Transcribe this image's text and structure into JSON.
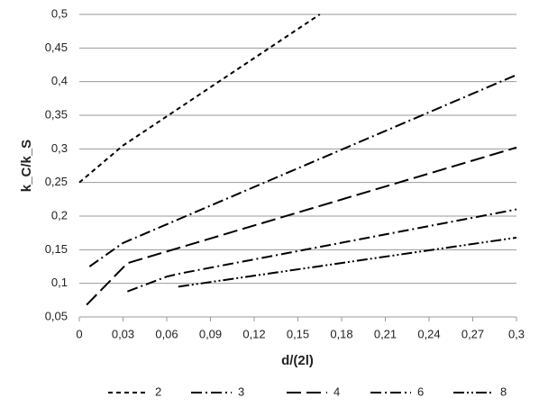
{
  "chart_data": {
    "type": "line",
    "x_label": "d/(2l)",
    "y_label": "k_C/k_S",
    "xlim": [
      0,
      0.3
    ],
    "ylim": [
      0.05,
      0.5
    ],
    "xticks": [
      0,
      {
        "value": 0.03,
        "label": "0,03"
      },
      {
        "value": 0.06,
        "label": "0,06"
      },
      {
        "value": 0.09,
        "label": "0,09"
      },
      {
        "value": 0.12,
        "label": "0,12"
      },
      {
        "value": 0.15,
        "label": "0,15"
      },
      {
        "value": 0.18,
        "label": "0,18"
      },
      {
        "value": 0.21,
        "label": "0,21"
      },
      {
        "value": 0.24,
        "label": "0,24"
      },
      {
        "value": 0.27,
        "label": "0,27"
      },
      {
        "value": 0.3,
        "label": "0,3"
      }
    ],
    "yticks": [
      {
        "value": 0.05,
        "label": "0,05"
      },
      {
        "value": 0.1,
        "label": "0,1"
      },
      {
        "value": 0.15,
        "label": "0,15"
      },
      {
        "value": 0.2,
        "label": "0,2"
      },
      {
        "value": 0.25,
        "label": "0,25"
      },
      {
        "value": 0.3,
        "label": "0,3"
      },
      {
        "value": 0.35,
        "label": "0,35"
      },
      {
        "value": 0.4,
        "label": "0,4"
      },
      {
        "value": 0.45,
        "label": "0,45"
      },
      {
        "value": 0.5,
        "label": "0,5"
      }
    ],
    "grid": true,
    "legend": "bottom",
    "series": [
      {
        "name": "2",
        "color": "#000000",
        "x": [
          0,
          0.03,
          0.165
        ],
        "values": [
          0.25,
          0.305,
          0.5
        ]
      },
      {
        "name": "3",
        "color": "#000000",
        "x": [
          0.007,
          0.03,
          0.3
        ],
        "values": [
          0.125,
          0.16,
          0.41
        ]
      },
      {
        "name": "4",
        "color": "#000000",
        "x": [
          0.005,
          0.033,
          0.3
        ],
        "values": [
          0.068,
          0.13,
          0.302
        ]
      },
      {
        "name": "6",
        "color": "#000000",
        "x": [
          0.033,
          0.06,
          0.07,
          0.3
        ],
        "values": [
          0.088,
          0.11,
          0.115,
          0.21
        ]
      },
      {
        "name": "8",
        "color": "#000000",
        "x": [
          0.068,
          0.3
        ],
        "values": [
          0.095,
          0.168
        ]
      }
    ]
  }
}
